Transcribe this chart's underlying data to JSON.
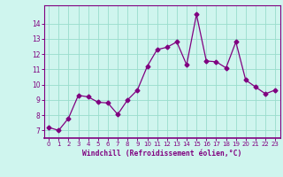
{
  "x": [
    0,
    1,
    2,
    3,
    4,
    5,
    6,
    7,
    8,
    9,
    10,
    11,
    12,
    13,
    14,
    15,
    16,
    17,
    18,
    19,
    20,
    21,
    22,
    23
  ],
  "y": [
    7.2,
    7.0,
    7.8,
    9.3,
    9.2,
    8.85,
    8.8,
    8.05,
    9.0,
    9.65,
    11.2,
    12.3,
    12.45,
    12.8,
    11.3,
    14.6,
    11.55,
    11.5,
    11.1,
    12.8,
    10.3,
    9.85,
    9.4,
    9.65
  ],
  "line_color": "#800080",
  "marker": "D",
  "marker_size": 2.5,
  "bg_color": "#cff5ee",
  "grid_color": "#99ddcc",
  "xlabel": "Windchill (Refroidissement éolien,°C)",
  "xlabel_color": "#800080",
  "tick_color": "#800080",
  "spine_color": "#800080",
  "ylim": [
    6.5,
    15.2
  ],
  "xlim": [
    -0.5,
    23.5
  ],
  "yticks": [
    7,
    8,
    9,
    10,
    11,
    12,
    13,
    14
  ],
  "xticks": [
    0,
    1,
    2,
    3,
    4,
    5,
    6,
    7,
    8,
    9,
    10,
    11,
    12,
    13,
    14,
    15,
    16,
    17,
    18,
    19,
    20,
    21,
    22,
    23
  ]
}
